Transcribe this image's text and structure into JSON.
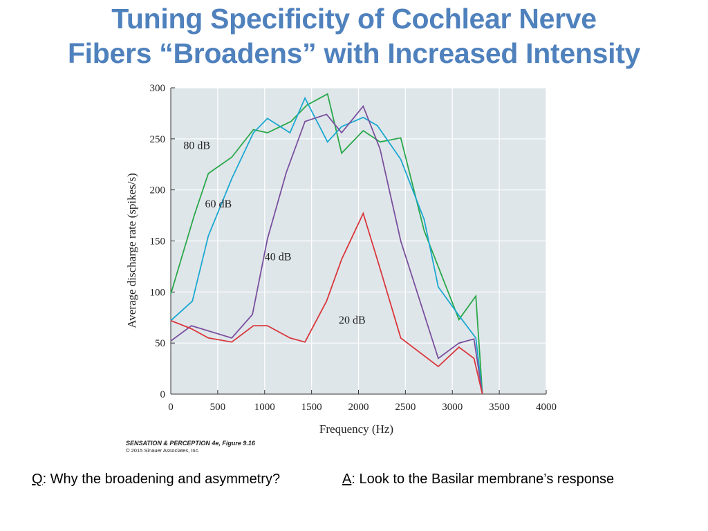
{
  "slide": {
    "title_line1": "Tuning Specificity of Cochlear Nerve",
    "title_line2": "Fibers “Broadens” with Increased Intensity",
    "credit_line1": "SENSATION & PERCEPTION 4e, Figure 9.16",
    "credit_line2": "© 2015 Sinauer Associates, Inc.",
    "question_letter": "Q",
    "question_text": ": Why the broadening and asymmetry?",
    "answer_letter": "A",
    "answer_text": ": Look to the Basilar membrane’s response"
  },
  "chart_data": {
    "type": "line",
    "title": "",
    "xlabel": "Frequency (Hz)",
    "ylabel": "Average discharge rate (spikes/s)",
    "xlim": [
      0,
      4000
    ],
    "ylim": [
      0,
      300
    ],
    "xticks": [
      0,
      500,
      1000,
      1500,
      2000,
      2500,
      3000,
      3500,
      4000
    ],
    "yticks": [
      0,
      50,
      100,
      150,
      200,
      250,
      300
    ],
    "grid": true,
    "series": [
      {
        "name": "80 dB",
        "color": "#2aa84a",
        "points": [
          [
            0,
            98
          ],
          [
            250,
            175
          ],
          [
            400,
            216
          ],
          [
            650,
            232
          ],
          [
            880,
            259
          ],
          [
            1030,
            256
          ],
          [
            1280,
            267
          ],
          [
            1450,
            283
          ],
          [
            1670,
            294
          ],
          [
            1820,
            236
          ],
          [
            2050,
            258
          ],
          [
            2230,
            247
          ],
          [
            2450,
            251
          ],
          [
            2700,
            160
          ],
          [
            3070,
            73
          ],
          [
            3250,
            96
          ],
          [
            3320,
            0
          ]
        ]
      },
      {
        "name": "60 dB",
        "color": "#1ba8d0",
        "points": [
          [
            0,
            72
          ],
          [
            230,
            91
          ],
          [
            400,
            155
          ],
          [
            650,
            211
          ],
          [
            880,
            256
          ],
          [
            1030,
            270
          ],
          [
            1270,
            256
          ],
          [
            1430,
            290
          ],
          [
            1670,
            247
          ],
          [
            1820,
            262
          ],
          [
            2050,
            271
          ],
          [
            2200,
            263
          ],
          [
            2450,
            230
          ],
          [
            2700,
            171
          ],
          [
            2850,
            105
          ],
          [
            3070,
            77
          ],
          [
            3250,
            55
          ],
          [
            3320,
            0
          ]
        ]
      },
      {
        "name": "40 dB",
        "color": "#7a4f9d",
        "points": [
          [
            0,
            52
          ],
          [
            220,
            67
          ],
          [
            650,
            55
          ],
          [
            870,
            78
          ],
          [
            1030,
            152
          ],
          [
            1230,
            217
          ],
          [
            1430,
            267
          ],
          [
            1660,
            274
          ],
          [
            1820,
            256
          ],
          [
            2050,
            282
          ],
          [
            2230,
            240
          ],
          [
            2450,
            150
          ],
          [
            2850,
            35
          ],
          [
            3070,
            50
          ],
          [
            3230,
            54
          ],
          [
            3320,
            0
          ]
        ]
      },
      {
        "name": "20 dB",
        "color": "#d9373b",
        "points": [
          [
            0,
            72
          ],
          [
            220,
            64
          ],
          [
            400,
            55
          ],
          [
            650,
            51
          ],
          [
            880,
            67
          ],
          [
            1030,
            67
          ],
          [
            1270,
            55
          ],
          [
            1430,
            51
          ],
          [
            1660,
            91
          ],
          [
            1820,
            132
          ],
          [
            2050,
            177
          ],
          [
            2230,
            123
          ],
          [
            2450,
            55
          ],
          [
            2850,
            27
          ],
          [
            3070,
            46
          ],
          [
            3230,
            35
          ],
          [
            3320,
            0
          ]
        ]
      }
    ],
    "annotations": [
      {
        "text": "80 dB",
        "x": 135,
        "y": 240
      },
      {
        "text": "60 dB",
        "x": 365,
        "y": 183
      },
      {
        "text": "40 dB",
        "x": 1000,
        "y": 131
      },
      {
        "text": "20 dB",
        "x": 1790,
        "y": 69
      }
    ]
  }
}
